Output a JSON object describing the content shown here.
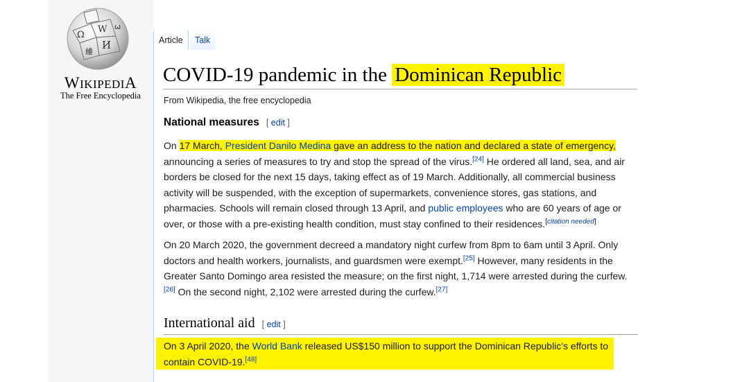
{
  "logo": {
    "wordmark_first": "W",
    "wordmark_mid": "IKIPEDI",
    "wordmark_last": "A",
    "tagline": "The Free Encyclopedia"
  },
  "tabs": [
    {
      "label": "Article"
    },
    {
      "label": "Talk"
    }
  ],
  "article": {
    "title_prefix": "COVID-19 pandemic in the ",
    "title_highlight": "Dominican Republic",
    "from": "From Wikipedia, the free encyclopedia",
    "sections": [
      {
        "heading": "National measures",
        "edit_open": "[ ",
        "edit_label": "edit",
        "edit_close": " ]",
        "p1": {
          "on": "On ",
          "hl_a": "17 March, ",
          "hl_link": "President Danilo Medina",
          "hl_b": " gave an address to the nation and declared a state of emergency,",
          "t1": " announcing a series of measures to try and stop the spread of the virus.",
          "ref24": "[24]",
          "t2": " He ordered all land, sea, and air borders be closed for the next 15 days, taking effect as of 19 March. Additionally, all commercial business activity will be suspended, with the exception of supermarkets, convenience stores, gas stations, and pharmacies. Schools will remain closed through 13 April, and ",
          "link_pe": "public employees",
          "t3": " who are 60 years of age or over, or those with a pre-existing health condition, must stay confined to their residences.",
          "cn_open": "[",
          "cn": "citation needed",
          "cn_close": "]"
        },
        "p2": {
          "t1": "On 20 March 2020, the government decreed a mandatory night curfew from 8pm to 6am until 3 April. Only doctors and health workers, journalists, and guardsmen were exempt.",
          "ref25": "[25]",
          "t2": " However, many residents in the Greater Santo Domingo area resisted the measure; on the first night, 1,714 were arrested during the curfew.",
          "ref26": "[26]",
          "t3": " On the second night, 2,102 were arrested during the curfew.",
          "ref27": "[27]"
        }
      },
      {
        "heading": "International aid",
        "edit_open": "[ ",
        "edit_label": "edit",
        "edit_close": " ]",
        "p3": {
          "t1": "On 3 April 2020, the ",
          "link_wb": "World Bank",
          "t2": " released US$150 million to support the Dominican Republic's efforts to contain COVID-19.",
          "ref48": "[48]"
        }
      }
    ]
  }
}
